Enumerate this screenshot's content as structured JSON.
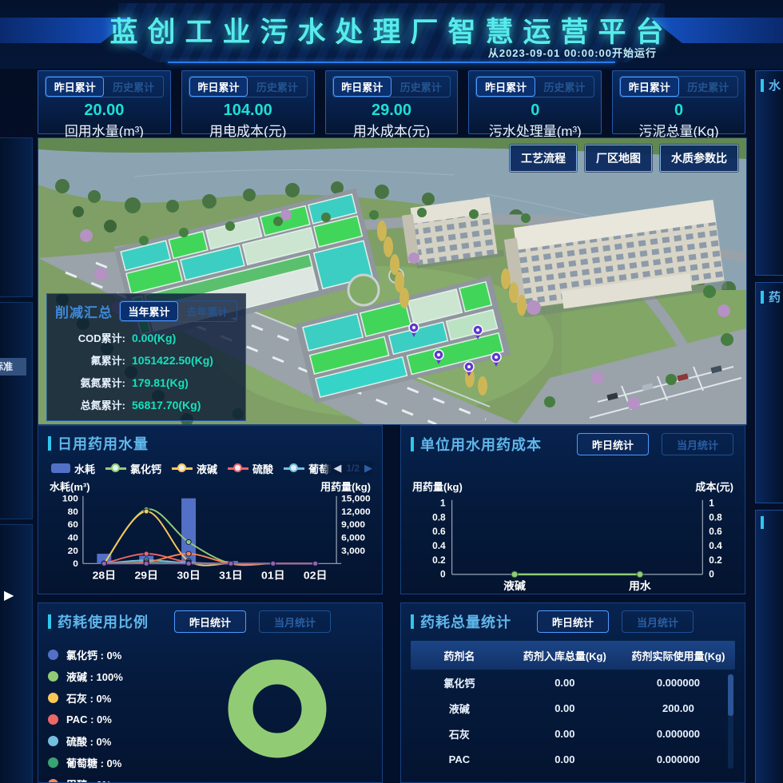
{
  "header": {
    "title": "蓝创工业污水处理厂智慧运营平台",
    "subtitle": "从2023-09-01 00:00:00开始运行"
  },
  "stat_cards": [
    {
      "tabs": [
        "昨日累计",
        "历史累计"
      ],
      "value": "20.00",
      "label": "回用水量(m³)"
    },
    {
      "tabs": [
        "昨日累计",
        "历史累计"
      ],
      "value": "104.00",
      "label": "用电成本(元)"
    },
    {
      "tabs": [
        "昨日累计",
        "历史累计"
      ],
      "value": "29.00",
      "label": "用水成本(元)"
    },
    {
      "tabs": [
        "昨日累计",
        "历史累计"
      ],
      "value": "0",
      "label": "污水处理量(m³)"
    },
    {
      "tabs": [
        "昨日累计",
        "历史累计"
      ],
      "value": "0",
      "label": "污泥总量(Kg)"
    }
  ],
  "scene": {
    "buttons": [
      "工艺流程",
      "厂区地图",
      "水质参数比"
    ],
    "reduction": {
      "title": "削减汇总",
      "tabs": [
        "当年累计",
        "去年累计"
      ],
      "rows": [
        {
          "label": "COD累计:",
          "value": "0.00(Kg)"
        },
        {
          "label": "氟累计:",
          "value": "1051422.50(Kg)"
        },
        {
          "label": "氨氮累计:",
          "value": "179.81(Kg)"
        },
        {
          "label": "总氮累计:",
          "value": "56817.70(Kg)"
        }
      ]
    }
  },
  "panels": {
    "daily": {
      "title": "日用药用水量",
      "axis_left": "水耗(m³)",
      "axis_right": "用药量(kg)",
      "pager": {
        "prev": "◀",
        "page": "1/2",
        "next": "▶"
      }
    },
    "unit": {
      "title": "单位用水用药成本",
      "buttons": [
        "昨日统计",
        "当月统计"
      ],
      "axis_left": "用药量(kg)",
      "axis_right": "成本(元)"
    },
    "ratio": {
      "title": "药耗使用比例",
      "buttons": [
        "昨日统计",
        "当月统计"
      ]
    },
    "total": {
      "title": "药耗总量统计",
      "buttons": [
        "昨日统计",
        "当月统计"
      ]
    }
  },
  "edges": {
    "left_tag": "标准",
    "expander": "▶",
    "right_panels": [
      {
        "char": "水"
      },
      {
        "char": "药"
      },
      {
        "char": ""
      }
    ]
  },
  "chart_data": [
    {
      "type": "bar",
      "title": "日用药用水量",
      "categories": [
        "28日",
        "29日",
        "30日",
        "31日",
        "01日",
        "02日"
      ],
      "left_axis": {
        "label": "水耗(m³)",
        "ticks": [
          0,
          20,
          40,
          60,
          80,
          100
        ],
        "max": 100
      },
      "right_axis": {
        "label": "用药量(kg)",
        "ticks": [
          "3,000",
          "6,000",
          "9,000",
          "12,000",
          "15,000"
        ],
        "max": 15000
      },
      "bar_series": {
        "name": "水耗",
        "color": "#5470c6",
        "axis": "left",
        "values": [
          15,
          12,
          100,
          4,
          0,
          0
        ]
      },
      "line_series": [
        {
          "name": "氯化钙",
          "color": "#91cc75",
          "values": [
            0,
            12450,
            4950,
            0,
            0,
            0
          ]
        },
        {
          "name": "液碱",
          "color": "#fac858",
          "values": [
            0,
            12000,
            600,
            0,
            0,
            0
          ]
        },
        {
          "name": "硫酸",
          "color": "#ee6666",
          "values": [
            0,
            2250,
            300,
            0,
            0,
            0
          ]
        },
        {
          "name": "葡萄糖",
          "color": "#73c0de",
          "values": [
            0,
            750,
            150,
            0,
            0,
            0
          ]
        },
        {
          "name": "石灰",
          "color": "#3ba272",
          "values": [
            0,
            300,
            0,
            0,
            0,
            0
          ]
        },
        {
          "name": "PAC",
          "color": "#fc8452",
          "values": [
            0,
            300,
            2250,
            0,
            0,
            0
          ]
        },
        {
          "name": "甲醇",
          "color": "#9a60b4",
          "values": [
            0,
            0,
            0,
            0,
            0,
            0
          ]
        }
      ],
      "legend_visible": [
        "水耗",
        "氯化钙",
        "液碱",
        "硫酸",
        "葡萄糖"
      ],
      "legend_position": "top"
    },
    {
      "type": "line",
      "title": "单位用水用药成本",
      "categories": [
        "液碱",
        "用水"
      ],
      "left_axis": {
        "label": "用药量(kg)",
        "ticks": [
          0,
          0.2,
          0.4,
          0.6,
          0.8,
          1
        ],
        "max": 1
      },
      "right_axis": {
        "label": "成本(元)",
        "ticks": [
          0,
          0.2,
          0.4,
          0.6,
          0.8,
          1
        ],
        "max": 1
      },
      "series": [
        {
          "name": "成本",
          "color": "#91cc75",
          "values": [
            0,
            0
          ]
        }
      ]
    },
    {
      "type": "pie",
      "title": "药耗使用比例",
      "slices": [
        {
          "name": "氯化钙",
          "pct": 0,
          "color": "#5470c6"
        },
        {
          "name": "液碱",
          "pct": 100,
          "color": "#91cc75"
        },
        {
          "name": "石灰",
          "pct": 0,
          "color": "#fac858"
        },
        {
          "name": "PAC",
          "pct": 0,
          "color": "#ee6666"
        },
        {
          "name": "硫酸",
          "pct": 0,
          "color": "#73c0de"
        },
        {
          "name": "葡萄糖",
          "pct": 0,
          "color": "#3ba272"
        },
        {
          "name": "甲醇",
          "pct": 0,
          "color": "#fc8452"
        }
      ],
      "legend_position": "left"
    },
    {
      "type": "table",
      "title": "药耗总量统计",
      "columns": [
        "药剂名",
        "药剂入库总量(Kg)",
        "药剂实际使用量(Kg)"
      ],
      "rows": [
        [
          "氯化钙",
          "0.00",
          "0.000000"
        ],
        [
          "液碱",
          "0.00",
          "200.00"
        ],
        [
          "石灰",
          "0.00",
          "0.000000"
        ],
        [
          "PAC",
          "0.00",
          "0.000000"
        ]
      ]
    }
  ]
}
